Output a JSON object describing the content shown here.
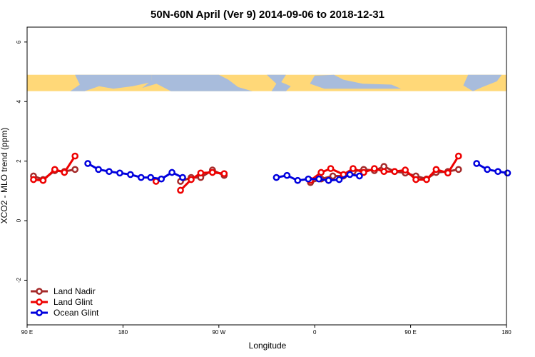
{
  "chart_data": {
    "type": "line",
    "title": "50N-60N April (Ver 9)   2014-09-06 to 2018-12-31",
    "xlabel": "Longitude",
    "ylabel": "XCO2 - MLO trend (ppm)",
    "xlim": [
      90,
      540
    ],
    "ylim": [
      -3.5,
      6.5
    ],
    "x_ticks": [
      {
        "value": 90,
        "label": "90 E"
      },
      {
        "value": 180,
        "label": "180"
      },
      {
        "value": 270,
        "label": "90 W"
      },
      {
        "value": 360,
        "label": "0"
      },
      {
        "value": 450,
        "label": "90 E"
      },
      {
        "value": 540,
        "label": "180"
      }
    ],
    "y_ticks": [
      {
        "value": -2,
        "label": "-2"
      },
      {
        "value": 0,
        "label": "0"
      },
      {
        "value": 2,
        "label": "2"
      },
      {
        "value": 4,
        "label": "4"
      },
      {
        "value": 6,
        "label": "6"
      }
    ],
    "map_band": {
      "ymin": 4.35,
      "ymax": 4.9,
      "land_color": "#ffd878",
      "ocean_color": "#a8bcdc"
    },
    "legend_position": "bottom-left",
    "series": [
      {
        "name": "Land Nadir",
        "color": "#a52a2a",
        "segments": [
          [
            [
              96,
              1.5
            ],
            [
              105,
              1.38
            ],
            [
              116,
              1.68
            ],
            [
              125,
              1.65
            ],
            [
              135,
              1.72
            ]
          ],
          [
            [
              234,
              1.32
            ],
            [
              244,
              1.45
            ],
            [
              253,
              1.45
            ],
            [
              264,
              1.7
            ],
            [
              275,
              1.52
            ]
          ],
          [
            [
              356,
              1.28
            ],
            [
              366,
              1.4
            ],
            [
              377,
              1.5
            ],
            [
              387,
              1.5
            ],
            [
              396,
              1.65
            ],
            [
              406,
              1.72
            ],
            [
              416,
              1.68
            ],
            [
              425,
              1.82
            ],
            [
              435,
              1.65
            ],
            [
              445,
              1.6
            ],
            [
              455,
              1.5
            ],
            [
              465,
              1.4
            ],
            [
              474,
              1.62
            ],
            [
              485,
              1.65
            ],
            [
              495,
              1.72
            ]
          ]
        ]
      },
      {
        "name": "Land Glint",
        "color": "#ee0000",
        "segments": [
          [
            [
              96,
              1.38
            ],
            [
              105,
              1.35
            ],
            [
              116,
              1.72
            ],
            [
              125,
              1.62
            ],
            [
              135,
              2.17
            ]
          ],
          [
            [
              211,
              1.32
            ]
          ],
          [
            [
              234,
              1.02
            ],
            [
              244,
              1.38
            ],
            [
              253,
              1.6
            ],
            [
              264,
              1.62
            ],
            [
              275,
              1.58
            ]
          ],
          [
            [
              356,
              1.35
            ],
            [
              366,
              1.62
            ],
            [
              375,
              1.75
            ],
            [
              387,
              1.55
            ],
            [
              396,
              1.75
            ],
            [
              406,
              1.62
            ],
            [
              416,
              1.75
            ],
            [
              425,
              1.65
            ],
            [
              435,
              1.65
            ],
            [
              445,
              1.7
            ],
            [
              455,
              1.38
            ],
            [
              465,
              1.38
            ],
            [
              474,
              1.72
            ],
            [
              485,
              1.6
            ],
            [
              495,
              2.17
            ]
          ]
        ]
      },
      {
        "name": "Ocean Glint",
        "color": "#0000dd",
        "segments": [
          [
            [
              147,
              1.92
            ],
            [
              157,
              1.72
            ],
            [
              167,
              1.65
            ],
            [
              177,
              1.6
            ],
            [
              187,
              1.55
            ],
            [
              197,
              1.45
            ],
            [
              206,
              1.45
            ],
            [
              216,
              1.4
            ],
            [
              226,
              1.62
            ],
            [
              236,
              1.45
            ]
          ],
          [
            [
              324,
              1.45
            ],
            [
              334,
              1.52
            ],
            [
              344,
              1.35
            ],
            [
              354,
              1.4
            ],
            [
              364,
              1.4
            ],
            [
              373,
              1.35
            ],
            [
              383,
              1.38
            ],
            [
              393,
              1.55
            ],
            [
              402,
              1.5
            ]
          ],
          [
            [
              512,
              1.92
            ],
            [
              522,
              1.72
            ],
            [
              532,
              1.65
            ],
            [
              541,
              1.6
            ]
          ]
        ]
      }
    ]
  }
}
